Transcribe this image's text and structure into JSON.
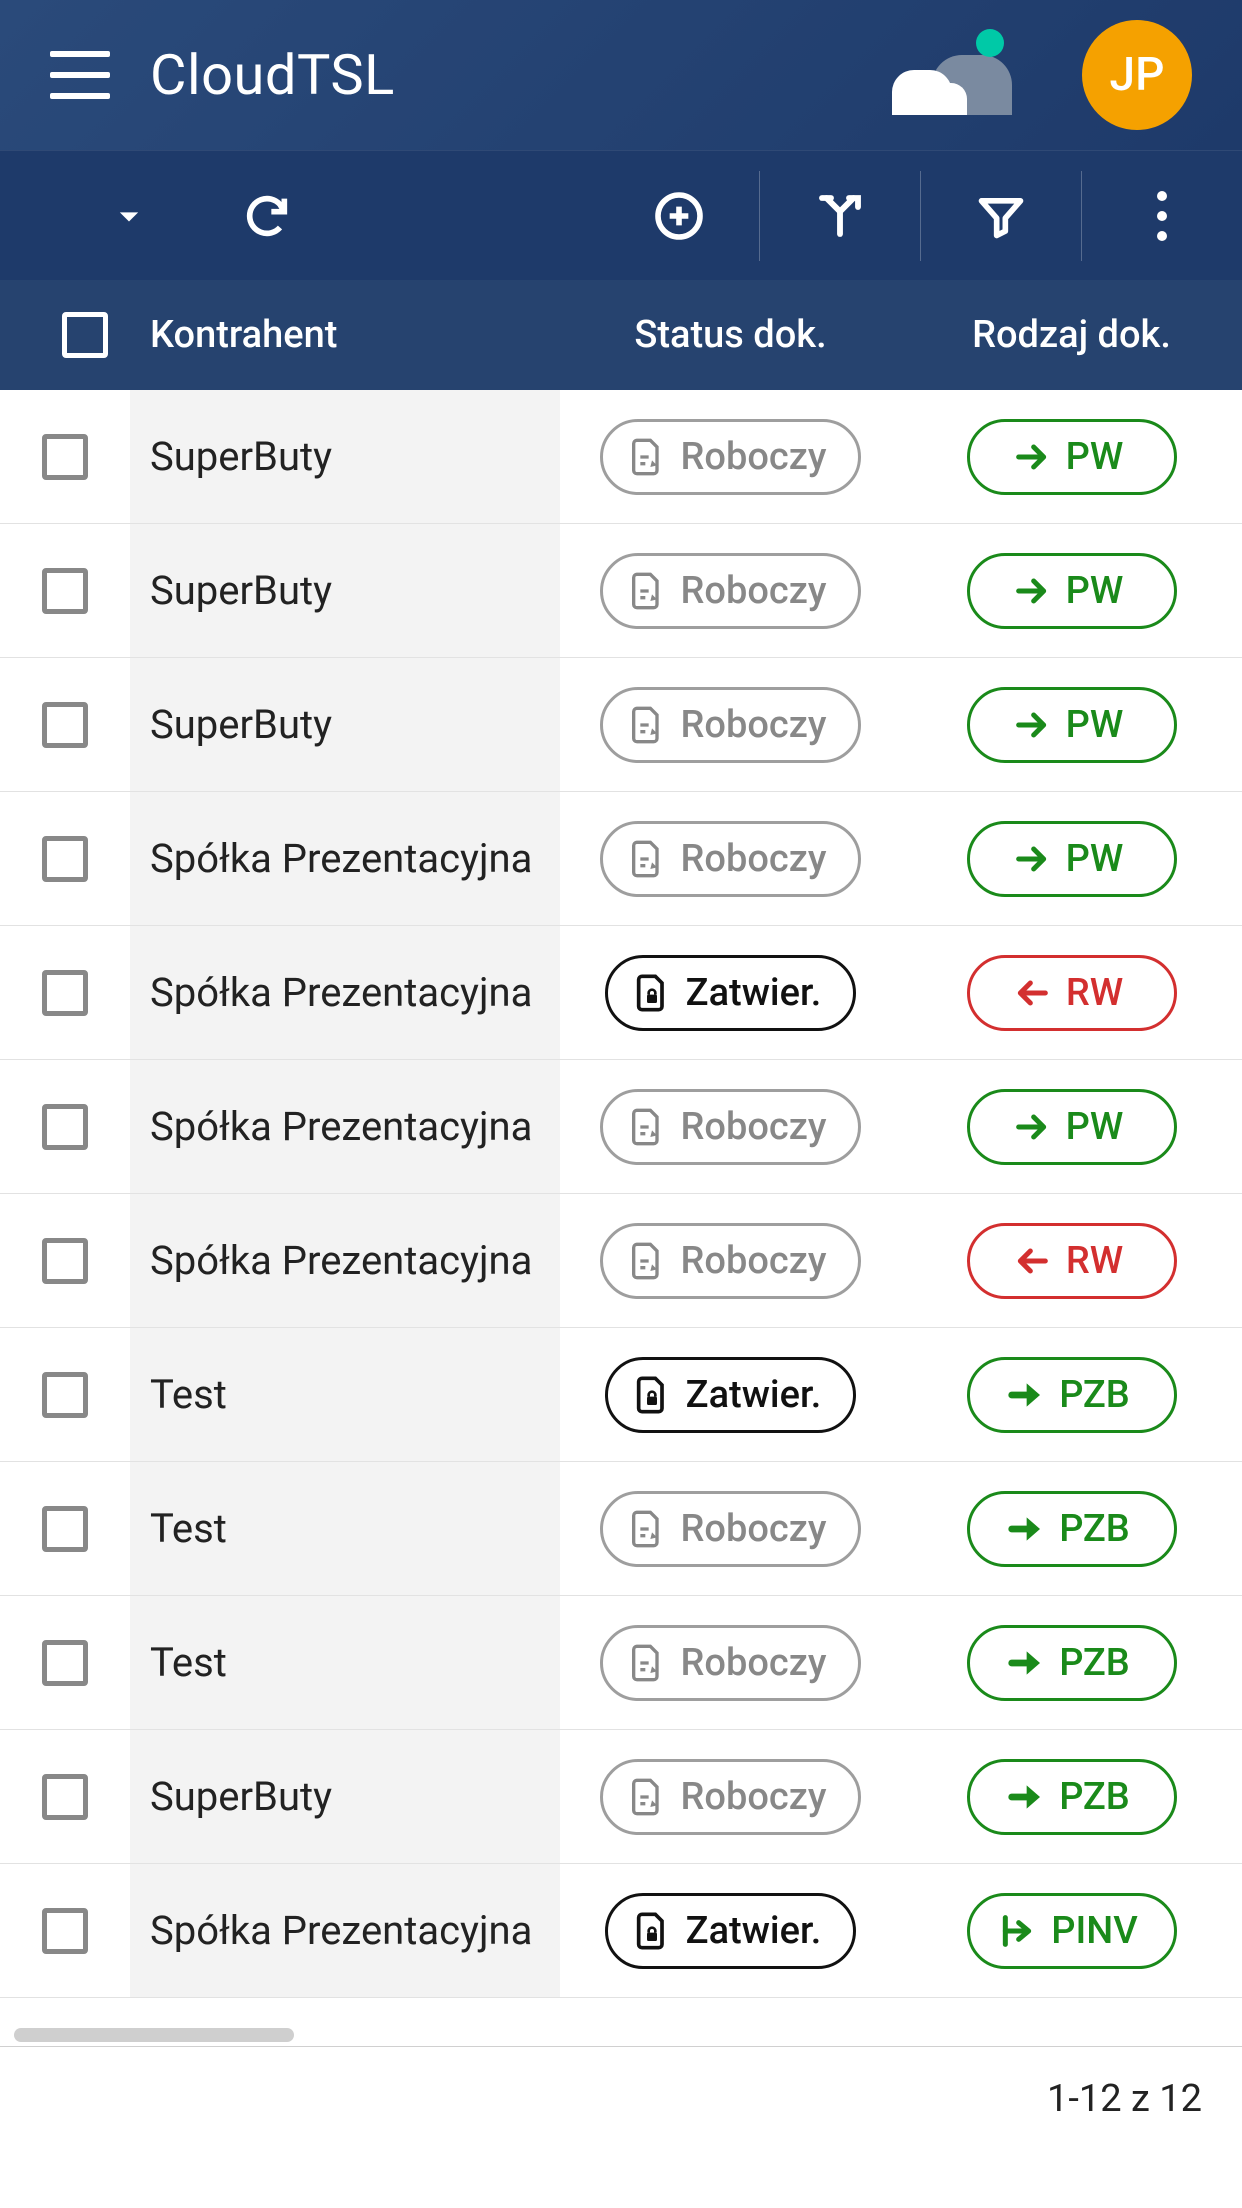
{
  "app": {
    "title": "CloudTSL",
    "avatar_initials": "JP"
  },
  "columns": {
    "c1": "Kontrahent",
    "c2": "Status dok.",
    "c3": "Rodzaj dok."
  },
  "status_labels": {
    "roboczy": "Roboczy",
    "zatwier": "Zatwier."
  },
  "rows": [
    {
      "name": "SuperButy",
      "status": "roboczy",
      "type": "PW",
      "type_color": "green",
      "type_icon": "arrow-right"
    },
    {
      "name": "SuperButy",
      "status": "roboczy",
      "type": "PW",
      "type_color": "green",
      "type_icon": "arrow-right"
    },
    {
      "name": "SuperButy",
      "status": "roboczy",
      "type": "PW",
      "type_color": "green",
      "type_icon": "arrow-right"
    },
    {
      "name": "Spółka Prezentacyjna",
      "status": "roboczy",
      "type": "PW",
      "type_color": "green",
      "type_icon": "arrow-right"
    },
    {
      "name": "Spółka Prezentacyjna",
      "status": "zatwier",
      "type": "RW",
      "type_color": "red",
      "type_icon": "arrow-left"
    },
    {
      "name": "Spółka Prezentacyjna",
      "status": "roboczy",
      "type": "PW",
      "type_color": "green",
      "type_icon": "arrow-right"
    },
    {
      "name": "Spółka Prezentacyjna",
      "status": "roboczy",
      "type": "RW",
      "type_color": "red",
      "type_icon": "arrow-left"
    },
    {
      "name": "Test",
      "status": "zatwier",
      "type": "PZB",
      "type_color": "green",
      "type_icon": "arrow-right-bold"
    },
    {
      "name": "Test",
      "status": "roboczy",
      "type": "PZB",
      "type_color": "green",
      "type_icon": "arrow-right-bold"
    },
    {
      "name": "Test",
      "status": "roboczy",
      "type": "PZB",
      "type_color": "green",
      "type_icon": "arrow-right-bold"
    },
    {
      "name": "SuperButy",
      "status": "roboczy",
      "type": "PZB",
      "type_color": "green",
      "type_icon": "arrow-right-bold"
    },
    {
      "name": "Spółka Prezentacyjna",
      "status": "zatwier",
      "type": "PINV",
      "type_color": "green",
      "type_icon": "export"
    }
  ],
  "pagination": "1-12 z 12",
  "colors": {
    "header_grad_a": "#2a4a7a",
    "header_grad_b": "#1e3a6a",
    "avatar_bg": "#f5a100",
    "cloud_dot": "#00c9a7",
    "green": "#1a8a1a",
    "red": "#d32f2f",
    "gray": "#9e9e9e"
  }
}
